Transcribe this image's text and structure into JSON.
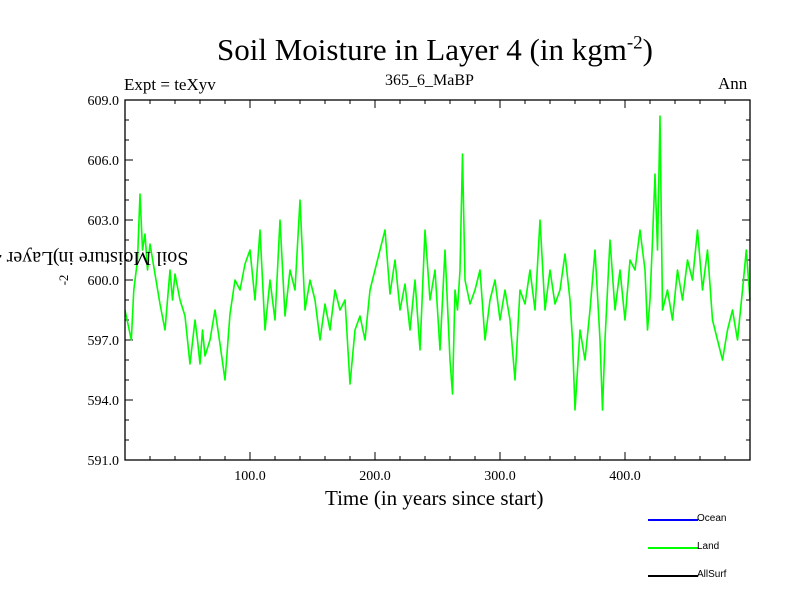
{
  "chart_data": {
    "type": "line",
    "title": "Soil Moisture in Layer 4 (in kgm",
    "title_superscript": "-2",
    "title_suffix": ")",
    "expt_label": "Expt = teXyv",
    "subtitle": "365_6_MaBP",
    "period_label": "Ann",
    "xlabel": "Time (in years since start)",
    "ylabel": "Soil Moisture in Layer 4 (in kgm",
    "ylabel_superscript": "-2",
    "ylabel_suffix": ")",
    "xlim": [
      0,
      500
    ],
    "ylim": [
      591.0,
      609.0
    ],
    "x_ticks": [
      100,
      200,
      300,
      400
    ],
    "x_tick_labels": [
      "100.0",
      "200.0",
      "300.0",
      "400.0"
    ],
    "y_ticks": [
      591,
      594,
      597,
      600,
      603,
      606,
      609
    ],
    "y_tick_labels": [
      "591.0",
      "594.0",
      "597.0",
      "600.0",
      "603.0",
      "606.0",
      "609.0"
    ],
    "grid": false,
    "legend_placement": "bottom-right, below plot",
    "series": [
      {
        "name": "Ocean",
        "color": "#0000ff",
        "values": []
      },
      {
        "name": "Land",
        "color": "#00ff00",
        "x": [
          0,
          5,
          7,
          10,
          12,
          14,
          16,
          18,
          20,
          24,
          28,
          32,
          36,
          38,
          40,
          44,
          48,
          52,
          56,
          58,
          60,
          62,
          64,
          68,
          72,
          76,
          80,
          84,
          88,
          92,
          96,
          100,
          104,
          108,
          112,
          116,
          120,
          124,
          128,
          132,
          136,
          140,
          144,
          148,
          152,
          156,
          160,
          164,
          168,
          172,
          176,
          180,
          184,
          188,
          192,
          196,
          200,
          204,
          208,
          212,
          216,
          220,
          224,
          228,
          232,
          236,
          240,
          244,
          248,
          252,
          256,
          260,
          262,
          264,
          266,
          268,
          270,
          272,
          276,
          280,
          284,
          288,
          292,
          296,
          300,
          304,
          308,
          312,
          316,
          320,
          324,
          328,
          332,
          336,
          340,
          344,
          348,
          352,
          356,
          358,
          360,
          364,
          368,
          372,
          376,
          380,
          382,
          384,
          388,
          392,
          396,
          400,
          404,
          408,
          412,
          416,
          418,
          420,
          422,
          424,
          426,
          428,
          430,
          434,
          438,
          442,
          446,
          450,
          454,
          458,
          462,
          466,
          470,
          474,
          478,
          482,
          486,
          490,
          494,
          497,
          500
        ],
        "y": [
          598.5,
          597.0,
          599.5,
          601.0,
          604.3,
          601.5,
          602.3,
          600.5,
          601.8,
          600.3,
          598.8,
          597.5,
          600.5,
          599.0,
          600.3,
          599.0,
          598.2,
          595.8,
          598.0,
          597.0,
          595.8,
          597.5,
          596.2,
          597.0,
          598.5,
          596.8,
          595.0,
          598.3,
          600.0,
          599.5,
          600.8,
          601.5,
          599.0,
          602.5,
          597.5,
          600.0,
          598.0,
          603.0,
          598.2,
          600.5,
          599.5,
          604.0,
          598.5,
          600.0,
          599.0,
          597.0,
          598.8,
          597.5,
          599.5,
          598.5,
          599.0,
          594.8,
          597.5,
          598.2,
          597.0,
          599.5,
          600.5,
          601.5,
          602.5,
          599.3,
          601.0,
          598.5,
          599.8,
          597.5,
          600.0,
          596.5,
          602.5,
          599.0,
          600.5,
          596.5,
          601.5,
          596.0,
          594.3,
          599.5,
          598.5,
          600.5,
          606.3,
          600.0,
          598.8,
          599.5,
          600.5,
          597.0,
          599.0,
          600.0,
          598.0,
          599.5,
          598.0,
          595.0,
          599.5,
          598.8,
          600.5,
          598.5,
          603.0,
          598.5,
          600.5,
          598.8,
          599.5,
          601.3,
          599.0,
          597.0,
          593.5,
          597.5,
          596.0,
          598.5,
          601.5,
          597.0,
          593.5,
          597.0,
          602.0,
          598.5,
          600.5,
          598.0,
          601.0,
          600.5,
          602.5,
          600.5,
          597.5,
          599.0,
          602.0,
          605.3,
          601.5,
          608.2,
          598.5,
          599.5,
          598.0,
          600.5,
          599.0,
          601.0,
          600.0,
          602.5,
          599.5,
          601.5,
          598.0,
          597.0,
          596.0,
          597.5,
          598.5,
          597.0,
          599.5,
          601.5,
          599.0
        ]
      },
      {
        "name": "AllSurf",
        "color": "#000000",
        "values": []
      }
    ]
  }
}
